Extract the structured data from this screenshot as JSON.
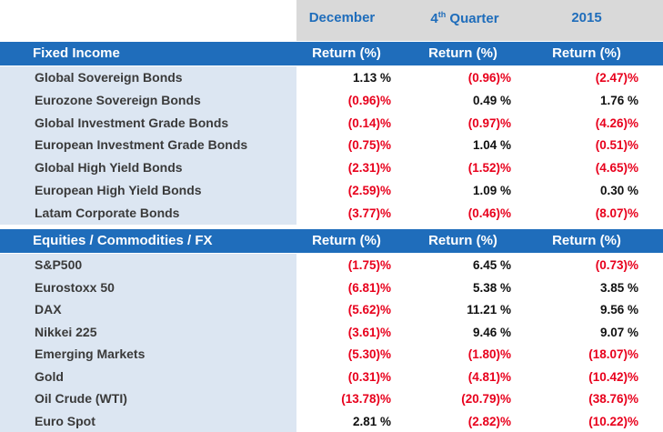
{
  "periods": {
    "december": "December",
    "quarter_num": "4",
    "quarter_sup": "th",
    "quarter_word": " Quarter",
    "year": "2015"
  },
  "fixed_income": {
    "title": "Fixed Income",
    "col_header": "Return (%)",
    "rows": [
      {
        "name": "Global Sovereign Bonds",
        "dec": "1.13 %",
        "q4": "(0.96)%",
        "yr": "(2.47)%"
      },
      {
        "name": "Eurozone Sovereign Bonds",
        "dec": "(0.96)%",
        "q4": "0.49 %",
        "yr": "1.76 %"
      },
      {
        "name": "Global Investment Grade Bonds",
        "dec": "(0.14)%",
        "q4": "(0.97)%",
        "yr": "(4.26)%"
      },
      {
        "name": "European Investment Grade Bonds",
        "dec": "(0.75)%",
        "q4": "1.04 %",
        "yr": "(0.51)%"
      },
      {
        "name": "Global High Yield Bonds",
        "dec": "(2.31)%",
        "q4": "(1.52)%",
        "yr": "(4.65)%"
      },
      {
        "name": "European High Yield Bonds",
        "dec": "(2.59)%",
        "q4": "1.09 %",
        "yr": "0.30 %"
      },
      {
        "name": "Latam Corporate Bonds",
        "dec": "(3.77)%",
        "q4": "(0.46)%",
        "yr": "(8.07)%"
      }
    ]
  },
  "equities": {
    "title": "Equities / Commodities / FX",
    "col_header": "Return (%)",
    "rows": [
      {
        "name": "S&P500",
        "dec": "(1.75)%",
        "q4": "6.45 %",
        "yr": "(0.73)%"
      },
      {
        "name": "Eurostoxx 50",
        "dec": "(6.81)%",
        "q4": "5.38 %",
        "yr": "3.85 %"
      },
      {
        "name": "DAX",
        "dec": "(5.62)%",
        "q4": "11.21 %",
        "yr": "9.56 %"
      },
      {
        "name": "Nikkei 225",
        "dec": "(3.61)%",
        "q4": "9.46 %",
        "yr": "9.07 %"
      },
      {
        "name": "Emerging Markets",
        "dec": "(5.30)%",
        "q4": "(1.80)%",
        "yr": "(18.07)%"
      },
      {
        "name": "Gold",
        "dec": "(0.31)%",
        "q4": "(4.81)%",
        "yr": "(10.42)%"
      },
      {
        "name": "Oil Crude (WTI)",
        "dec": "(13.78)%",
        "q4": "(20.79)%",
        "yr": "(38.76)%"
      },
      {
        "name": "Euro Spot",
        "dec": "2.81 %",
        "q4": "(2.82)%",
        "yr": "(10.22)%"
      }
    ]
  },
  "colors": {
    "header_blue": "#1f6dbb",
    "label_bg": "#dce6f2",
    "negative": "#e8001c",
    "period_bg": "#d9d9d9"
  }
}
